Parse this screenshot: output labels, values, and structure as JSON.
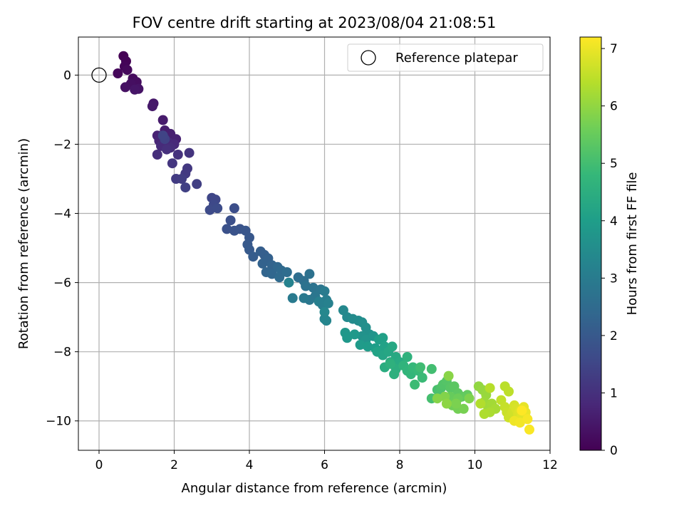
{
  "chart_data": {
    "type": "scatter",
    "title": "FOV centre drift starting at 2023/08/04 21:08:51",
    "xlabel": "Angular distance from reference (arcmin)",
    "ylabel": "Rotation from reference (arcmin)",
    "xlim": [
      -0.55,
      12
    ],
    "ylim": [
      -10.85,
      1.1
    ],
    "xticks": [
      0,
      2,
      4,
      6,
      8,
      10,
      12
    ],
    "xtick_labels": [
      "0",
      "2",
      "4",
      "6",
      "8",
      "10",
      "12"
    ],
    "yticks": [
      0,
      -2,
      -4,
      -6,
      -8,
      -10
    ],
    "ytick_labels": [
      "0",
      "−2",
      "−4",
      "−6",
      "−8",
      "−10"
    ],
    "grid": true,
    "legend": {
      "placement": "top-right",
      "entries": [
        "Reference platepar"
      ]
    },
    "reference_point": {
      "name": "Reference platepar",
      "x": 0,
      "y": 0,
      "marker": "open-circle"
    },
    "colorbar": {
      "label": "Hours from first FF file",
      "range": [
        0,
        7.2
      ],
      "ticks": [
        0,
        1,
        2,
        3,
        4,
        5,
        6,
        7
      ],
      "tick_labels": [
        "0",
        "1",
        "2",
        "3",
        "4",
        "5",
        "6",
        "7"
      ],
      "colormap": "viridis",
      "colormap_stops": [
        "#440154",
        "#482878",
        "#3e4a89",
        "#31688e",
        "#26828e",
        "#1f9e89",
        "#35b779",
        "#6ece58",
        "#b5de2b",
        "#fde725"
      ]
    },
    "series": [
      {
        "columns": [
          "x",
          "y",
          "hours"
        ],
        "points": [
          [
            0.65,
            0.55
          ],
          [
            0.72,
            0.4
          ],
          [
            0.68,
            0.25
          ],
          [
            0.5,
            0.05
          ],
          [
            0.75,
            0.15
          ],
          [
            0.9,
            -0.1
          ],
          [
            1.0,
            -0.2
          ],
          [
            0.85,
            -0.25
          ],
          [
            0.7,
            -0.35
          ],
          [
            1.05,
            -0.4
          ],
          [
            0.95,
            -0.42
          ],
          [
            1.45,
            -0.82
          ],
          [
            1.42,
            -0.9
          ],
          [
            1.7,
            -1.3
          ],
          [
            1.75,
            -1.6
          ],
          [
            1.9,
            -1.7
          ],
          [
            2.05,
            -1.85
          ],
          [
            1.55,
            -1.75
          ],
          [
            1.6,
            -1.9
          ],
          [
            1.85,
            -1.95
          ],
          [
            2.0,
            -2.0
          ],
          [
            1.65,
            -2.05
          ],
          [
            1.9,
            -2.1
          ],
          [
            1.55,
            -2.3
          ],
          [
            1.8,
            -2.15
          ],
          [
            2.1,
            -2.3
          ],
          [
            2.4,
            -2.25
          ],
          [
            1.95,
            -2.55
          ],
          [
            2.35,
            -2.7
          ],
          [
            2.3,
            -2.85
          ],
          [
            2.05,
            -3.0
          ],
          [
            2.2,
            -3.0
          ],
          [
            2.6,
            -3.15
          ],
          [
            2.3,
            -3.25
          ],
          [
            1.75,
            -1.85
          ],
          [
            1.7,
            -1.75
          ],
          [
            3.0,
            -3.55
          ],
          [
            3.1,
            -3.6
          ],
          [
            3.05,
            -3.75
          ],
          [
            2.95,
            -3.9
          ],
          [
            3.15,
            -3.85
          ],
          [
            3.6,
            -3.85
          ],
          [
            3.5,
            -4.2
          ],
          [
            3.4,
            -4.45
          ],
          [
            3.6,
            -4.5
          ],
          [
            3.75,
            -4.45
          ],
          [
            3.9,
            -4.5
          ],
          [
            4.0,
            -4.7
          ],
          [
            3.95,
            -4.9
          ],
          [
            4.0,
            -5.05
          ],
          [
            4.1,
            -5.25
          ],
          [
            4.3,
            -5.1
          ],
          [
            4.4,
            -5.2
          ],
          [
            4.5,
            -5.3
          ],
          [
            4.35,
            -5.45
          ],
          [
            4.6,
            -5.5
          ],
          [
            4.45,
            -5.7
          ],
          [
            4.6,
            -5.75
          ],
          [
            4.75,
            -5.55
          ],
          [
            4.85,
            -5.65
          ],
          [
            4.8,
            -5.85
          ],
          [
            5.0,
            -5.7
          ],
          [
            5.3,
            -5.85
          ],
          [
            5.45,
            -5.95
          ],
          [
            5.6,
            -5.75
          ],
          [
            5.5,
            -6.1
          ],
          [
            5.7,
            -6.15
          ],
          [
            5.9,
            -6.2
          ],
          [
            5.75,
            -6.4
          ],
          [
            5.6,
            -6.5
          ],
          [
            5.45,
            -6.45
          ],
          [
            5.15,
            -6.45
          ],
          [
            6.0,
            -6.25
          ],
          [
            6.05,
            -6.5
          ],
          [
            5.95,
            -6.65
          ],
          [
            5.85,
            -6.55
          ],
          [
            6.1,
            -6.6
          ],
          [
            5.05,
            -6.0
          ],
          [
            6.0,
            -7.05
          ],
          [
            6.05,
            -7.1
          ],
          [
            6.0,
            -6.85
          ],
          [
            6.5,
            -6.8
          ],
          [
            6.6,
            -7.0
          ],
          [
            6.75,
            -7.05
          ],
          [
            6.9,
            -7.1
          ],
          [
            7.0,
            -7.15
          ],
          [
            7.1,
            -7.3
          ],
          [
            7.2,
            -7.5
          ],
          [
            7.0,
            -7.55
          ],
          [
            7.1,
            -7.65
          ],
          [
            7.3,
            -7.55
          ],
          [
            6.55,
            -7.45
          ],
          [
            6.6,
            -7.6
          ],
          [
            6.8,
            -7.5
          ],
          [
            6.95,
            -7.8
          ],
          [
            7.15,
            -7.85
          ],
          [
            7.35,
            -7.9
          ],
          [
            7.45,
            -7.65
          ],
          [
            7.55,
            -7.6
          ],
          [
            7.6,
            -7.85
          ],
          [
            7.4,
            -8.0
          ],
          [
            7.55,
            -8.1
          ],
          [
            7.7,
            -8.0
          ],
          [
            7.8,
            -7.85
          ],
          [
            7.9,
            -8.15
          ],
          [
            8.0,
            -8.3
          ],
          [
            7.75,
            -8.3
          ],
          [
            7.6,
            -8.45
          ],
          [
            7.9,
            -8.5
          ],
          [
            7.85,
            -8.65
          ],
          [
            7.75,
            -8.35
          ],
          [
            8.2,
            -8.15
          ],
          [
            8.1,
            -8.4
          ],
          [
            8.2,
            -8.55
          ],
          [
            8.3,
            -8.65
          ],
          [
            8.35,
            -8.45
          ],
          [
            8.5,
            -8.55
          ],
          [
            8.6,
            -8.75
          ],
          [
            8.4,
            -8.95
          ],
          [
            8.55,
            -8.45
          ],
          [
            8.85,
            -8.5
          ],
          [
            8.85,
            -9.35
          ],
          [
            9.0,
            -9.1
          ],
          [
            9.05,
            -9.25
          ],
          [
            9.1,
            -9.05
          ],
          [
            9.15,
            -8.95
          ],
          [
            9.25,
            -8.85
          ],
          [
            9.35,
            -9.05
          ],
          [
            9.45,
            -9.0
          ],
          [
            9.55,
            -9.2
          ],
          [
            9.65,
            -9.3
          ],
          [
            9.8,
            -9.25
          ],
          [
            9.35,
            -9.3
          ],
          [
            9.45,
            -9.45
          ],
          [
            9.55,
            -9.35
          ],
          [
            9.4,
            -9.55
          ],
          [
            9.55,
            -9.65
          ],
          [
            9.7,
            -9.65
          ],
          [
            9.5,
            -9.5
          ],
          [
            9.85,
            -9.35
          ],
          [
            9.2,
            -9.3
          ],
          [
            9.0,
            -9.35
          ],
          [
            9.3,
            -8.7
          ],
          [
            9.25,
            -9.5
          ],
          [
            10.1,
            -9.0
          ],
          [
            10.2,
            -9.1
          ],
          [
            10.3,
            -9.25
          ],
          [
            10.25,
            -9.45
          ],
          [
            10.35,
            -9.6
          ],
          [
            10.45,
            -9.5
          ],
          [
            10.55,
            -9.65
          ],
          [
            10.4,
            -9.75
          ],
          [
            10.25,
            -9.8
          ],
          [
            10.15,
            -9.5
          ],
          [
            10.4,
            -9.05
          ],
          [
            10.8,
            -9.0
          ],
          [
            10.9,
            -9.15
          ],
          [
            10.7,
            -9.4
          ],
          [
            10.8,
            -9.6
          ],
          [
            10.85,
            -9.75
          ],
          [
            10.9,
            -9.9
          ],
          [
            11.0,
            -9.75
          ],
          [
            11.05,
            -9.55
          ],
          [
            11.1,
            -9.65
          ],
          [
            11.15,
            -9.8
          ],
          [
            11.2,
            -9.7
          ],
          [
            11.25,
            -9.85
          ],
          [
            11.3,
            -9.6
          ],
          [
            11.35,
            -9.75
          ],
          [
            11.05,
            -10.0
          ],
          [
            11.2,
            -10.05
          ],
          [
            11.4,
            -9.95
          ],
          [
            11.45,
            -10.25
          ],
          [
            11.25,
            -9.7
          ]
        ]
      }
    ]
  }
}
